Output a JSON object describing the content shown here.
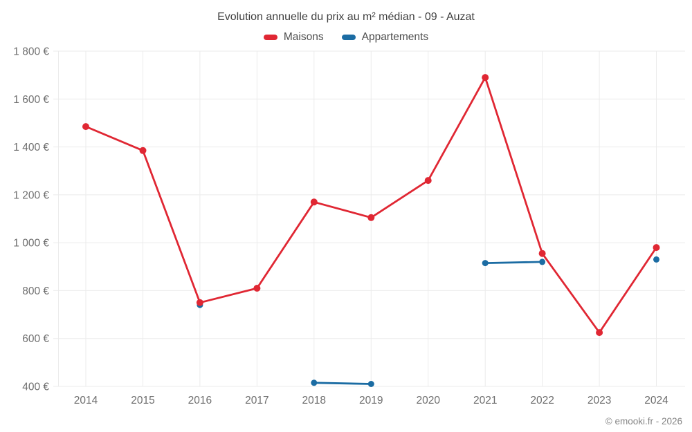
{
  "chart": {
    "copyright": "© emooki.fr - 2026"
  },
  "chart_data": {
    "type": "line",
    "title": "Evolution annuelle du prix au m² médian - 09 - Auzat",
    "categories": [
      "2014",
      "2015",
      "2016",
      "2017",
      "2018",
      "2019",
      "2020",
      "2021",
      "2022",
      "2023",
      "2024"
    ],
    "series": [
      {
        "name": "Maisons",
        "color": "#e02733",
        "values": [
          1485,
          1385,
          750,
          810,
          1170,
          1105,
          1260,
          1690,
          955,
          625,
          980
        ]
      },
      {
        "name": "Appartements",
        "color": "#1b6ca3",
        "values": [
          null,
          null,
          740,
          null,
          415,
          410,
          null,
          915,
          920,
          null,
          930
        ]
      }
    ],
    "ylim": [
      400,
      1800
    ],
    "y_tick_step": 200,
    "y_ticks": [
      {
        "value": 400,
        "label": "400 €"
      },
      {
        "value": 600,
        "label": "600 €"
      },
      {
        "value": 800,
        "label": "800 €"
      },
      {
        "value": 1000,
        "label": "1 000 €"
      },
      {
        "value": 1200,
        "label": "1 200 €"
      },
      {
        "value": 1400,
        "label": "1 400 €"
      },
      {
        "value": 1600,
        "label": "1 600 €"
      },
      {
        "value": 1800,
        "label": "1 800 €"
      }
    ],
    "xlabel": "",
    "ylabel": "",
    "grid": true,
    "legend_position": "top",
    "legend": [
      "Maisons",
      "Appartements"
    ],
    "currency_suffix": " €"
  }
}
